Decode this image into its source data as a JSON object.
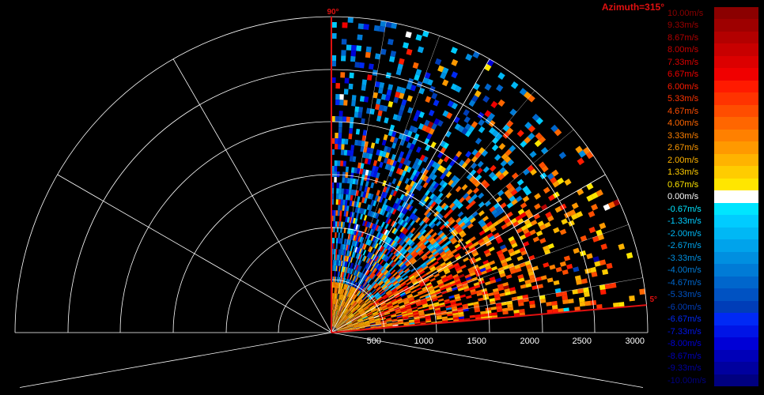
{
  "title": "Azimuth=315°",
  "chart_data": {
    "type": "heatmap",
    "subtype": "polar-sector (range-elevation velocity scan)",
    "title": "Azimuth=315°",
    "elevation_range_deg": [
      5,
      90
    ],
    "range_ticks_m": [
      "500",
      "1000",
      "1500",
      "2000",
      "2500",
      "3000"
    ],
    "range_max_m": 3000,
    "angle_labels": [
      "90°",
      "5°"
    ],
    "grid": true,
    "value_unit": "m/s",
    "value_range": [
      -10,
      10
    ],
    "description_of_pattern": "Positive velocities (yellow/orange/red) dominate low elevations and near range; negative velocities (cyan/blue) dominate mid-to-high elevations at mid range; sparse scattered returns at far range.",
    "legend": {
      "placement": "right",
      "entries": [
        {
          "label": "10.00m/s",
          "color": "#8b0000"
        },
        {
          "label": "9.33m/s",
          "color": "#9e0000"
        },
        {
          "label": "8.67m/s",
          "color": "#b30000"
        },
        {
          "label": "8.00m/s",
          "color": "#c80000"
        },
        {
          "label": "7.33m/s",
          "color": "#dc0000"
        },
        {
          "label": "6.67m/s",
          "color": "#f00000"
        },
        {
          "label": "6.00m/s",
          "color": "#ff1a00"
        },
        {
          "label": "5.33m/s",
          "color": "#ff3300"
        },
        {
          "label": "4.67m/s",
          "color": "#ff4d00"
        },
        {
          "label": "4.00m/s",
          "color": "#ff6600"
        },
        {
          "label": "3.33m/s",
          "color": "#ff8000"
        },
        {
          "label": "2.67m/s",
          "color": "#ff9900"
        },
        {
          "label": "2.00m/s",
          "color": "#ffb300"
        },
        {
          "label": "1.33m/s",
          "color": "#ffcc00"
        },
        {
          "label": "0.67m/s",
          "color": "#ffe600"
        },
        {
          "label": "0.00m/s",
          "color": "#ffffff"
        },
        {
          "label": "-0.67m/s",
          "color": "#00e5ff"
        },
        {
          "label": "-1.33m/s",
          "color": "#00ccff"
        },
        {
          "label": "-2.00m/s",
          "color": "#00b8f5"
        },
        {
          "label": "-2.67m/s",
          "color": "#00a3eb"
        },
        {
          "label": "-3.33m/s",
          "color": "#008fe0"
        },
        {
          "label": "-4.00m/s",
          "color": "#007bd6"
        },
        {
          "label": "-4.67m/s",
          "color": "#0066cc"
        },
        {
          "label": "-5.33m/s",
          "color": "#0052c2"
        },
        {
          "label": "-6.00m/s",
          "color": "#003db8"
        },
        {
          "label": "-6.67m/s",
          "color": "#0029f5"
        },
        {
          "label": "-7.33m/s",
          "color": "#0014e6"
        },
        {
          "label": "-8.00m/s",
          "color": "#0000d6"
        },
        {
          "label": "-8.67m/s",
          "color": "#0000b8"
        },
        {
          "label": "-9.33m/s",
          "color": "#00009e"
        },
        {
          "label": "-10.00m/s",
          "color": "#000080"
        }
      ]
    }
  }
}
